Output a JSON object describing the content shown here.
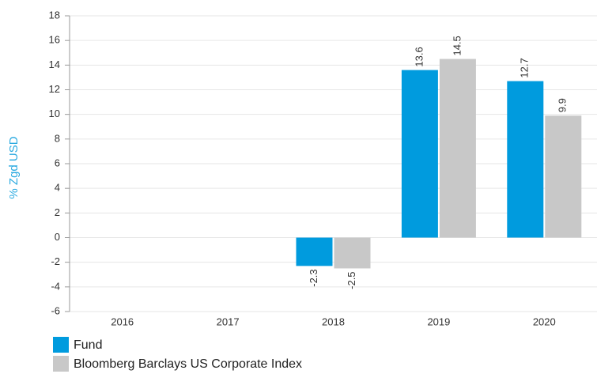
{
  "chart_data": {
    "type": "bar",
    "y_label": "% Zgd USD",
    "categories": [
      "2016",
      "2017",
      "2018",
      "2019",
      "2020"
    ],
    "series": [
      {
        "name": "Fund",
        "color": "#009bde",
        "values": [
          null,
          null,
          -2.3,
          13.6,
          12.7
        ]
      },
      {
        "name": "Bloomberg Barclays US Corporate Index",
        "color": "#c8c8c8",
        "values": [
          null,
          null,
          -2.5,
          14.5,
          9.9
        ]
      }
    ],
    "ylim": [
      -6,
      18
    ],
    "yticks": [
      -6,
      -4,
      -2,
      0,
      2,
      4,
      6,
      8,
      10,
      12,
      14,
      16,
      18
    ],
    "grid": true
  }
}
